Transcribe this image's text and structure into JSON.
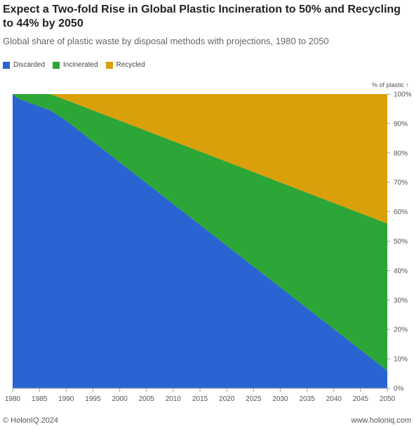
{
  "chart_data": {
    "type": "area",
    "stacked": true,
    "normalized": true,
    "title": "Expect a Two-fold Rise in Global Plastic Incineration to 50% and Recycling to 44% by 2050",
    "subtitle": "Global share of plastic waste by disposal methods with projections, 1980 to 2050",
    "ylabel": "% of plastic ↑",
    "ylim": [
      0,
      100
    ],
    "xlim": [
      1980,
      2050
    ],
    "x_ticks": [
      1980,
      1985,
      1990,
      1995,
      2000,
      2005,
      2010,
      2015,
      2020,
      2025,
      2030,
      2035,
      2040,
      2045,
      2050
    ],
    "y_ticks": [
      0,
      10,
      20,
      30,
      40,
      50,
      60,
      70,
      80,
      90,
      100
    ],
    "y_tick_suffix": "%",
    "y_axis_position": "right",
    "legend_position": "top-left",
    "x": [
      1980,
      1981,
      1987,
      1990,
      2050
    ],
    "series": [
      {
        "name": "Discarded",
        "color": "#2a64d2",
        "values": [
          100,
          98.5,
          94.5,
          91,
          6
        ]
      },
      {
        "name": "Incinerated",
        "color": "#2ca636",
        "values": [
          0,
          1.5,
          5.5,
          7,
          50
        ]
      },
      {
        "name": "Recycled",
        "color": "#d9a00b",
        "values": [
          0,
          0,
          0,
          2,
          44
        ]
      }
    ]
  },
  "footer": {
    "left": "© HolonIQ 2024",
    "right": "www.holoniq.com"
  }
}
